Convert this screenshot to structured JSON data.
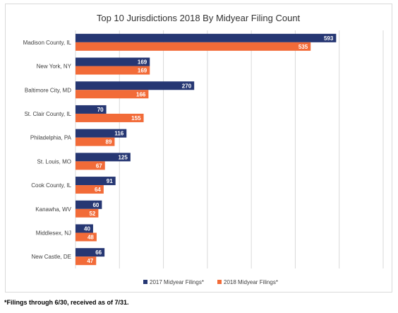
{
  "chart_data": {
    "type": "bar",
    "orientation": "horizontal",
    "title": "Top 10 Jurisdictions  2018 By Midyear Filing Count",
    "categories": [
      "Madison County, IL",
      "New York, NY",
      "Baltimore City, MD",
      "St. Clair County, IL",
      "Philadelphia, PA",
      "St. Louis, MO",
      "Cook County, IL",
      "Kanawha, WV",
      "Middlesex, NJ",
      "New Castle, DE"
    ],
    "series": [
      {
        "name": "2017 Midyear Filings*",
        "values": [
          593,
          169,
          270,
          70,
          116,
          125,
          91,
          60,
          40,
          66
        ],
        "color": "#263773"
      },
      {
        "name": "2018 Midyear Filings*",
        "values": [
          535,
          169,
          166,
          155,
          89,
          67,
          64,
          52,
          48,
          47
        ],
        "color": "#f26b38"
      }
    ],
    "xlim": [
      0,
      700
    ],
    "grid": "vertical",
    "legend": "bottom",
    "data_labels": true
  },
  "footnote": "*Filings through 6/30, received as of 7/31."
}
